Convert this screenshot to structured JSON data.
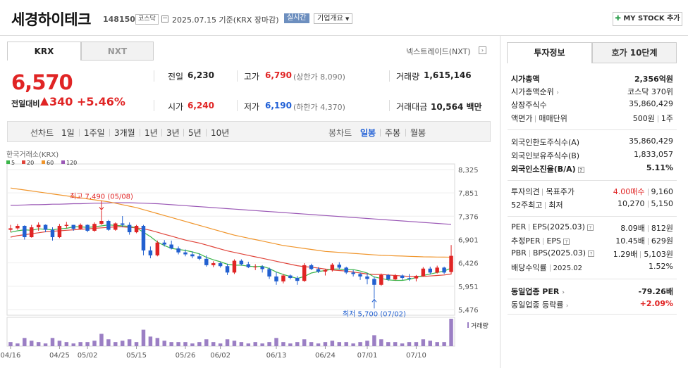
{
  "header": {
    "stock_name": "세경하이테크",
    "stock_code": "148150",
    "market_badge": "코스닥",
    "base_date": "2025.07.15  기준(KRX 장마감)",
    "realtime_label": "실시간",
    "company_overview_label": "기업개요",
    "my_stock_label": "MY STOCK 추가"
  },
  "tabs": {
    "krx": "KRX",
    "nxt": "NXT",
    "nextrade_link": "넥스트레이드(NXT)"
  },
  "price": {
    "current": "6,570",
    "change_label": "전일대비",
    "change_value": "340",
    "change_pct": "+5.46%"
  },
  "stats": {
    "prev_label": "전일",
    "prev_value": "6,230",
    "high_label": "고가",
    "high_value": "6,790",
    "upper_limit": "(상한가 8,090)",
    "volume_label": "거래량",
    "volume_value": "1,615,146",
    "open_label": "시가",
    "open_value": "6,240",
    "low_label": "저가",
    "low_value": "6,190",
    "lower_limit": "(하한가 4,370)",
    "amount_label": "거래대금",
    "amount_value": "10,564 백만"
  },
  "period_bar": {
    "line_chart": "선차트",
    "periods": [
      "1일",
      "1주일",
      "3개월",
      "1년",
      "3년",
      "5년",
      "10년"
    ],
    "candle_chart": "봉차트",
    "candle_periods": [
      "일봉",
      "주봉",
      "월봉"
    ],
    "active_candle": "일봉"
  },
  "chart_data": {
    "type": "candlestick",
    "source_label": "한국거래소(KRX)",
    "legend": [
      {
        "name": "5",
        "color": "#3bb54a"
      },
      {
        "name": "20",
        "color": "#e0443a"
      },
      {
        "name": "60",
        "color": "#f0952b"
      },
      {
        "name": "120",
        "color": "#9b59b6"
      }
    ],
    "ylim": [
      5476,
      8325
    ],
    "y_ticks": [
      "8,325",
      "7,851",
      "7,376",
      "6,901",
      "6,426",
      "5,951",
      "5,476"
    ],
    "x_ticks": [
      "04/16",
      "04/25",
      "05/02",
      "05/15",
      "05/26",
      "06/02",
      "06/13",
      "06/24",
      "07/01",
      "07/10"
    ],
    "x_tick_index": [
      0,
      7,
      11,
      18,
      25,
      30,
      38,
      45,
      51,
      58
    ],
    "max_annotation": "최고 7,490 (05/08)",
    "max_index": 13,
    "max_value": 7490,
    "min_annotation": "최저 5,700 (07/02)",
    "min_index": 52,
    "min_value": 5700,
    "volume_label": "거래량",
    "candles": [
      [
        7100,
        7200,
        7050,
        7130
      ],
      [
        7130,
        7220,
        7100,
        7180
      ],
      [
        7180,
        7190,
        6900,
        6950
      ],
      [
        6950,
        7200,
        6940,
        7150
      ],
      [
        7150,
        7250,
        7080,
        7200
      ],
      [
        7200,
        7210,
        7050,
        7100
      ],
      [
        7100,
        7150,
        6880,
        6950
      ],
      [
        6950,
        7220,
        6930,
        7180
      ],
      [
        7180,
        7260,
        7130,
        7200
      ],
      [
        7200,
        7200,
        7080,
        7120
      ],
      [
        7120,
        7230,
        7100,
        7200
      ],
      [
        7200,
        7210,
        7050,
        7080
      ],
      [
        7080,
        7250,
        7060,
        7220
      ],
      [
        7220,
        7490,
        7200,
        7280
      ],
      [
        7280,
        7300,
        7080,
        7100
      ],
      [
        7100,
        7250,
        7080,
        7230
      ],
      [
        7230,
        7380,
        7150,
        7200
      ],
      [
        7200,
        7250,
        7000,
        7050
      ],
      [
        7050,
        7200,
        7030,
        7180
      ],
      [
        7180,
        7200,
        6580,
        6680
      ],
      [
        6680,
        6760,
        6520,
        6580
      ],
      [
        6580,
        6880,
        6560,
        6840
      ],
      [
        6840,
        6890,
        6760,
        6800
      ],
      [
        6800,
        6880,
        6700,
        6720
      ],
      [
        6720,
        6760,
        6600,
        6640
      ],
      [
        6640,
        6700,
        6560,
        6600
      ],
      [
        6600,
        6660,
        6520,
        6560
      ],
      [
        6560,
        6620,
        6480,
        6510
      ],
      [
        6510,
        6580,
        6350,
        6380
      ],
      [
        6380,
        6460,
        6340,
        6420
      ],
      [
        6420,
        6450,
        6330,
        6360
      ],
      [
        6360,
        6410,
        6180,
        6230
      ],
      [
        6230,
        6500,
        6200,
        6470
      ],
      [
        6470,
        6500,
        6370,
        6400
      ],
      [
        6400,
        6450,
        6320,
        6340
      ],
      [
        6340,
        6400,
        6280,
        6350
      ],
      [
        6350,
        6380,
        6230,
        6300
      ],
      [
        6300,
        6330,
        6100,
        6150
      ],
      [
        6150,
        6240,
        5980,
        6050
      ],
      [
        6050,
        6200,
        6010,
        6170
      ],
      [
        6170,
        6190,
        6090,
        6120
      ],
      [
        6120,
        6160,
        5980,
        6060
      ],
      [
        6060,
        6420,
        6040,
        6380
      ],
      [
        6380,
        6410,
        6280,
        6300
      ],
      [
        6300,
        6340,
        6220,
        6250
      ],
      [
        6250,
        6300,
        6170,
        6280
      ],
      [
        6280,
        6420,
        6250,
        6390
      ],
      [
        6390,
        6440,
        6290,
        6330
      ],
      [
        6330,
        6350,
        6200,
        6230
      ],
      [
        6230,
        6280,
        6150,
        6200
      ],
      [
        6200,
        6230,
        6080,
        6150
      ],
      [
        6150,
        6220,
        5990,
        6100
      ],
      [
        6100,
        6150,
        5700,
        5980
      ],
      [
        5980,
        6210,
        5960,
        6180
      ],
      [
        6180,
        6200,
        6060,
        6090
      ],
      [
        6090,
        6200,
        6070,
        6170
      ],
      [
        6170,
        6190,
        6080,
        6120
      ],
      [
        6120,
        6200,
        6060,
        6110
      ],
      [
        6110,
        6180,
        6050,
        6160
      ],
      [
        6160,
        6340,
        6150,
        6310
      ],
      [
        6310,
        6350,
        6190,
        6230
      ],
      [
        6230,
        6370,
        6210,
        6330
      ],
      [
        6330,
        6350,
        6200,
        6230
      ],
      [
        6240,
        6790,
        6190,
        6570
      ]
    ],
    "volumes": [
      3,
      2,
      6,
      4,
      3,
      2,
      6,
      4,
      3,
      2,
      3,
      3,
      4,
      9,
      5,
      3,
      4,
      5,
      3,
      12,
      7,
      6,
      4,
      3,
      3,
      3,
      2,
      3,
      5,
      3,
      2,
      5,
      4,
      3,
      2,
      3,
      2,
      3,
      6,
      3,
      2,
      3,
      5,
      3,
      2,
      3,
      4,
      3,
      3,
      2,
      3,
      4,
      8,
      5,
      3,
      3,
      2,
      3,
      3,
      5,
      4,
      3,
      3,
      20
    ],
    "ma5": [
      7050,
      7080,
      7100,
      7090,
      7120,
      7110,
      7100,
      7120,
      7130,
      7160,
      7160,
      7150,
      7160,
      7180,
      7200,
      7190,
      7180,
      7170,
      7140,
      7050,
      6960,
      6850,
      6780,
      6720,
      6700,
      6680,
      6650,
      6610,
      6540,
      6490,
      6450,
      6400,
      6380,
      6380,
      6360,
      6350,
      6360,
      6310,
      6240,
      6190,
      6150,
      6110,
      6150,
      6220,
      6250,
      6270,
      6300,
      6300,
      6290,
      6290,
      6260,
      6220,
      6140,
      6110,
      6080,
      6070,
      6070,
      6090,
      6130,
      6170,
      6200,
      6230,
      6260,
      6320
    ],
    "ma20": [
      6950,
      6980,
      7000,
      7020,
      7040,
      7060,
      7070,
      7080,
      7090,
      7100,
      7110,
      7120,
      7130,
      7140,
      7150,
      7160,
      7160,
      7150,
      7140,
      7120,
      7090,
      7050,
      7010,
      6970,
      6930,
      6890,
      6860,
      6830,
      6790,
      6750,
      6710,
      6670,
      6640,
      6610,
      6580,
      6550,
      6520,
      6490,
      6460,
      6430,
      6400,
      6370,
      6350,
      6340,
      6320,
      6300,
      6280,
      6270,
      6260,
      6240,
      6220,
      6200,
      6190,
      6190,
      6180,
      6170,
      6160,
      6150,
      6150,
      6150,
      6160,
      6170,
      6180,
      6200
    ],
    "ma60": [
      7950,
      7930,
      7910,
      7890,
      7870,
      7850,
      7830,
      7810,
      7790,
      7770,
      7750,
      7730,
      7710,
      7690,
      7670,
      7640,
      7610,
      7580,
      7550,
      7510,
      7470,
      7430,
      7390,
      7350,
      7310,
      7270,
      7230,
      7190,
      7150,
      7110,
      7070,
      7030,
      6990,
      6960,
      6930,
      6900,
      6870,
      6840,
      6810,
      6780,
      6760,
      6740,
      6720,
      6700,
      6680,
      6660,
      6650,
      6640,
      6630,
      6620,
      6610,
      6600,
      6590,
      6580,
      6575,
      6570,
      6565,
      6560,
      6555,
      6550,
      6548,
      6546,
      6544,
      6542
    ],
    "ma120": [
      7600,
      7600,
      7605,
      7610,
      7610,
      7615,
      7620,
      7620,
      7625,
      7630,
      7630,
      7635,
      7640,
      7640,
      7645,
      7650,
      7650,
      7650,
      7645,
      7640,
      7635,
      7630,
      7620,
      7610,
      7600,
      7590,
      7580,
      7570,
      7560,
      7550,
      7540,
      7530,
      7520,
      7510,
      7500,
      7490,
      7480,
      7470,
      7460,
      7450,
      7440,
      7430,
      7420,
      7410,
      7400,
      7390,
      7380,
      7370,
      7360,
      7350,
      7340,
      7330,
      7320,
      7310,
      7300,
      7290,
      7280,
      7270,
      7260,
      7250,
      7240,
      7230,
      7220,
      7210
    ]
  },
  "invest_info": {
    "tab_info": "투자정보",
    "tab_orderbook": "호가 10단계",
    "market_cap_label": "시가총액",
    "market_cap_value": "2,356억원",
    "cap_rank_label": "시가총액순위",
    "cap_rank_value": "코스닥 370위",
    "listed_shares_label": "상장주식수",
    "listed_shares_value": "35,860,429",
    "par_label": "액면가",
    "trade_unit_label": "매매단위",
    "par_value": "500원",
    "trade_unit_value": "1주",
    "foreign_limit_label": "외국인한도주식수(A)",
    "foreign_limit_value": "35,860,429",
    "foreign_hold_label": "외국인보유주식수(B)",
    "foreign_hold_value": "1,833,057",
    "foreign_ratio_label": "외국인소진율(B/A)",
    "foreign_ratio_value": "5.11%",
    "opinion_label": "투자의견",
    "target_label": "목표주가",
    "opinion_value": "4.00매수",
    "target_value": "9,160",
    "w52_high_label": "52주최고",
    "w52_low_label": "최저",
    "w52_high_value": "10,270",
    "w52_low_value": "5,150",
    "per_label": "PER",
    "eps_label": "EPS(2025.03)",
    "per_value": "8.09배",
    "eps_value": "812원",
    "est_per_label": "추정PER",
    "est_eps_label": "EPS",
    "est_per_value": "10.45배",
    "est_eps_value": "629원",
    "pbr_label": "PBR",
    "bps_label": "BPS(2025.03)",
    "pbr_value": "1.29배",
    "bps_value": "5,103원",
    "div_label": "배당수익률",
    "div_date": "2025.02",
    "div_value": "1.52%",
    "sector_per_label": "동일업종 PER",
    "sector_per_value": "-79.26배",
    "sector_chg_label": "동일업종 등락률",
    "sector_chg_value": "+2.09%"
  }
}
